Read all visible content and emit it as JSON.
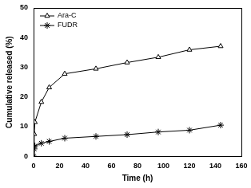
{
  "chart_data": {
    "type": "line",
    "x_label": "Time (h)",
    "y_label": "Cumulative released (%)",
    "x": [
      0,
      0.5,
      1,
      6,
      12,
      24,
      48,
      72,
      96,
      120,
      144
    ],
    "series": [
      {
        "name": "Ara-C",
        "color": "#000000",
        "marker": "triangle",
        "line_style": "solid",
        "values": [
          0,
          7.5,
          11.5,
          18.3,
          23.2,
          27.8,
          29.5,
          31.6,
          33.4,
          35.9,
          37.1
        ]
      },
      {
        "name": "FUDR",
        "color": "#000000",
        "marker": "star",
        "line_style": "solid",
        "values": [
          0,
          2.5,
          3.5,
          4.4,
          5.0,
          6.1,
          6.7,
          7.3,
          8.2,
          8.8,
          10.5
        ]
      }
    ],
    "xlim": [
      0,
      160
    ],
    "xticks": [
      0,
      20,
      40,
      60,
      80,
      100,
      120,
      140,
      160
    ],
    "ylim": [
      0,
      50
    ],
    "yticks": [
      0,
      10,
      20,
      30,
      40,
      50
    ],
    "grid": false,
    "legend": "upper left"
  }
}
